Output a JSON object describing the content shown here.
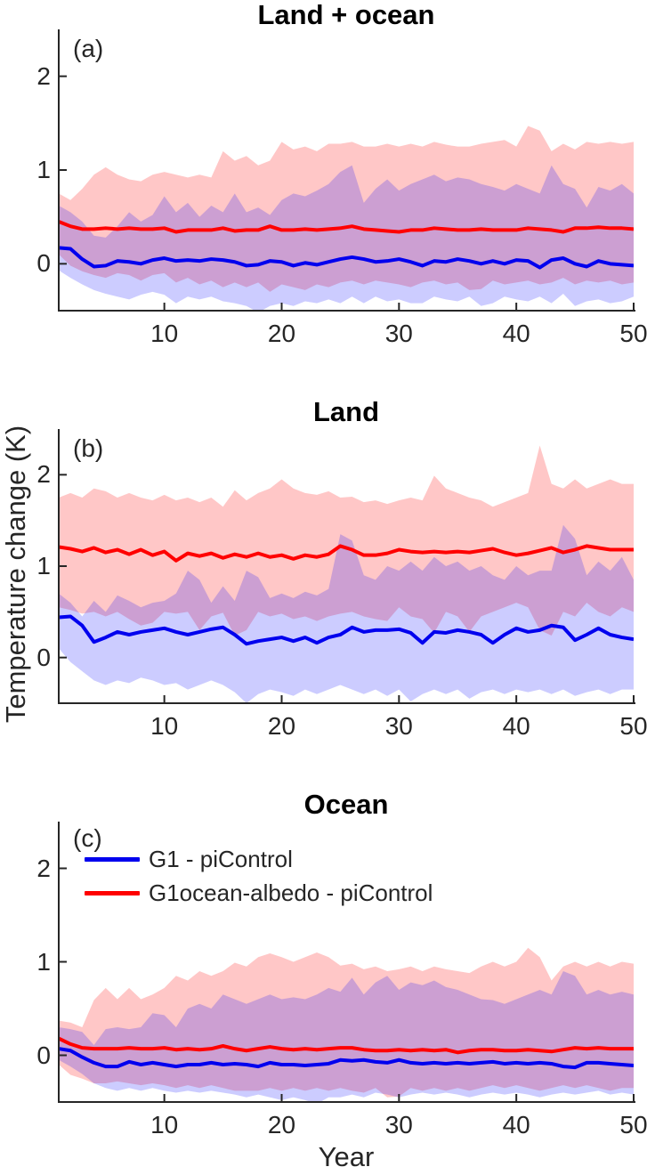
{
  "figure": {
    "ylabel": "Temperature change (K)",
    "xlabel": "Year",
    "axis_color": "#262626",
    "background": "#FFFFFF"
  },
  "legend": {
    "entries": [
      {
        "label": "G1 - piControl",
        "color": "#0000EE"
      },
      {
        "label": "G1ocean-albedo - piControl",
        "color": "#FF0000"
      }
    ]
  },
  "chart_data": [
    {
      "panel_label": "(a)",
      "title": "Land + ocean",
      "type": "line",
      "xlim": [
        1,
        50
      ],
      "ylim": [
        -0.5,
        2.5
      ],
      "xticks": [
        10,
        20,
        30,
        40,
        50
      ],
      "yticks": [
        0,
        1,
        2
      ],
      "x_start": 1,
      "x_step": 1,
      "n_points": 50,
      "series": [
        {
          "name": "G1 - piControl",
          "line_color": "#0000EE",
          "band_color": "#0000FF",
          "band_opacity": 0.2,
          "mean": [
            0.17,
            0.16,
            0.05,
            -0.03,
            -0.02,
            0.03,
            0.02,
            0.0,
            0.04,
            0.06,
            0.03,
            0.04,
            0.03,
            0.05,
            0.04,
            0.02,
            -0.02,
            -0.01,
            0.03,
            0.02,
            -0.02,
            0.01,
            -0.01,
            0.02,
            0.05,
            0.07,
            0.05,
            0.02,
            0.03,
            0.05,
            0.02,
            -0.02,
            0.03,
            0.02,
            0.05,
            0.03,
            0.0,
            0.03,
            0.0,
            0.04,
            0.03,
            -0.04,
            0.04,
            0.06,
            0.0,
            -0.03,
            0.03,
            0.0,
            -0.01,
            -0.02
          ],
          "band_high": [
            0.62,
            0.55,
            0.45,
            0.3,
            0.28,
            0.4,
            0.55,
            0.45,
            0.52,
            0.72,
            0.55,
            0.65,
            0.5,
            0.62,
            0.55,
            0.75,
            0.55,
            0.6,
            0.52,
            0.68,
            0.75,
            0.72,
            0.78,
            0.85,
            0.98,
            1.05,
            0.65,
            0.8,
            0.9,
            0.78,
            0.85,
            0.9,
            0.95,
            0.88,
            0.92,
            0.9,
            0.85,
            0.82,
            0.78,
            0.85,
            0.8,
            0.75,
            1.05,
            0.85,
            0.8,
            0.6,
            0.82,
            0.78,
            0.85,
            0.75
          ],
          "band_low": [
            -0.07,
            -0.15,
            -0.22,
            -0.28,
            -0.32,
            -0.35,
            -0.38,
            -0.33,
            -0.3,
            -0.33,
            -0.42,
            -0.35,
            -0.38,
            -0.35,
            -0.4,
            -0.42,
            -0.45,
            -0.52,
            -0.45,
            -0.42,
            -0.45,
            -0.4,
            -0.42,
            -0.38,
            -0.42,
            -0.35,
            -0.42,
            -0.35,
            -0.4,
            -0.38,
            -0.42,
            -0.42,
            -0.35,
            -0.38,
            -0.4,
            -0.35,
            -0.45,
            -0.42,
            -0.35,
            -0.38,
            -0.4,
            -0.35,
            -0.42,
            -0.32,
            -0.45,
            -0.4,
            -0.38,
            -0.42,
            -0.4,
            -0.35
          ]
        },
        {
          "name": "G1ocean-albedo - piControl",
          "line_color": "#FF0000",
          "band_color": "#FF0000",
          "band_opacity": 0.22,
          "mean": [
            0.45,
            0.4,
            0.37,
            0.37,
            0.38,
            0.37,
            0.38,
            0.37,
            0.37,
            0.38,
            0.34,
            0.36,
            0.36,
            0.36,
            0.38,
            0.35,
            0.36,
            0.36,
            0.4,
            0.36,
            0.36,
            0.37,
            0.36,
            0.37,
            0.38,
            0.4,
            0.37,
            0.36,
            0.35,
            0.34,
            0.36,
            0.36,
            0.38,
            0.37,
            0.36,
            0.36,
            0.37,
            0.36,
            0.36,
            0.36,
            0.38,
            0.37,
            0.36,
            0.34,
            0.38,
            0.38,
            0.39,
            0.38,
            0.38,
            0.37
          ],
          "band_high": [
            0.75,
            0.68,
            0.8,
            0.95,
            1.03,
            0.95,
            0.9,
            0.88,
            0.95,
            0.98,
            0.95,
            0.92,
            0.95,
            0.92,
            1.2,
            1.1,
            1.15,
            1.05,
            1.1,
            1.3,
            1.22,
            1.25,
            1.2,
            1.28,
            1.28,
            1.3,
            1.25,
            1.25,
            1.28,
            1.25,
            1.28,
            1.25,
            1.3,
            1.27,
            1.25,
            1.25,
            1.28,
            1.3,
            1.32,
            1.25,
            1.47,
            1.42,
            1.2,
            1.28,
            1.22,
            1.3,
            1.28,
            1.3,
            1.28,
            1.3
          ],
          "band_low": [
            0.1,
            -0.02,
            -0.08,
            -0.12,
            -0.15,
            -0.1,
            -0.12,
            -0.18,
            -0.12,
            -0.1,
            -0.2,
            -0.15,
            -0.22,
            -0.18,
            -0.25,
            -0.2,
            -0.25,
            -0.2,
            -0.3,
            -0.22,
            -0.25,
            -0.28,
            -0.22,
            -0.25,
            -0.2,
            -0.18,
            -0.22,
            -0.18,
            -0.2,
            -0.22,
            -0.25,
            -0.2,
            -0.18,
            -0.22,
            -0.2,
            -0.28,
            -0.27,
            -0.18,
            -0.22,
            -0.2,
            -0.18,
            -0.22,
            -0.2,
            -0.15,
            -0.22,
            -0.18,
            -0.2,
            -0.18,
            -0.22,
            -0.2
          ]
        }
      ]
    },
    {
      "panel_label": "(b)",
      "title": "Land",
      "type": "line",
      "xlim": [
        1,
        50
      ],
      "ylim": [
        -0.5,
        2.5
      ],
      "xticks": [
        10,
        20,
        30,
        40,
        50
      ],
      "yticks": [
        0,
        1,
        2
      ],
      "x_start": 1,
      "x_step": 1,
      "n_points": 50,
      "series": [
        {
          "name": "G1 - piControl",
          "line_color": "#0000EE",
          "band_color": "#0000FF",
          "band_opacity": 0.2,
          "mean": [
            0.44,
            0.45,
            0.35,
            0.17,
            0.22,
            0.28,
            0.25,
            0.28,
            0.3,
            0.32,
            0.28,
            0.25,
            0.28,
            0.31,
            0.33,
            0.25,
            0.15,
            0.18,
            0.2,
            0.22,
            0.18,
            0.22,
            0.16,
            0.22,
            0.25,
            0.33,
            0.28,
            0.3,
            0.3,
            0.31,
            0.27,
            0.16,
            0.28,
            0.27,
            0.3,
            0.28,
            0.25,
            0.16,
            0.25,
            0.32,
            0.28,
            0.3,
            0.35,
            0.33,
            0.19,
            0.25,
            0.32,
            0.25,
            0.22,
            0.2
          ],
          "band_high": [
            0.7,
            0.6,
            0.45,
            0.62,
            0.5,
            0.68,
            0.62,
            0.55,
            0.6,
            0.62,
            0.7,
            0.95,
            0.85,
            0.6,
            0.78,
            0.62,
            0.95,
            0.88,
            0.65,
            0.7,
            0.65,
            0.72,
            0.68,
            0.75,
            1.35,
            1.28,
            0.9,
            0.85,
            1.0,
            0.95,
            1.05,
            0.95,
            1.1,
            1.0,
            1.05,
            0.95,
            1.0,
            0.9,
            0.85,
            1.0,
            0.9,
            0.95,
            0.95,
            1.45,
            1.3,
            0.9,
            1.05,
            0.95,
            1.1,
            0.85
          ],
          "band_low": [
            0.1,
            -0.05,
            -0.15,
            -0.25,
            -0.3,
            -0.25,
            -0.28,
            -0.22,
            -0.25,
            -0.3,
            -0.28,
            -0.35,
            -0.3,
            -0.25,
            -0.3,
            -0.38,
            -0.5,
            -0.4,
            -0.35,
            -0.38,
            -0.42,
            -0.35,
            -0.4,
            -0.35,
            -0.3,
            -0.35,
            -0.4,
            -0.35,
            -0.42,
            -0.35,
            -0.48,
            -0.4,
            -0.35,
            -0.4,
            -0.35,
            -0.45,
            -0.38,
            -0.35,
            -0.4,
            -0.35,
            -0.38,
            -0.35,
            -0.4,
            -0.35,
            -0.42,
            -0.38,
            -0.35,
            -0.4,
            -0.35,
            -0.35
          ]
        },
        {
          "name": "G1ocean-albedo - piControl",
          "line_color": "#FF0000",
          "band_color": "#FF0000",
          "band_opacity": 0.22,
          "mean": [
            1.21,
            1.19,
            1.16,
            1.2,
            1.15,
            1.18,
            1.13,
            1.18,
            1.12,
            1.16,
            1.06,
            1.14,
            1.11,
            1.14,
            1.09,
            1.13,
            1.1,
            1.14,
            1.1,
            1.12,
            1.08,
            1.12,
            1.1,
            1.13,
            1.22,
            1.18,
            1.12,
            1.12,
            1.14,
            1.18,
            1.16,
            1.15,
            1.16,
            1.15,
            1.16,
            1.15,
            1.17,
            1.19,
            1.15,
            1.12,
            1.14,
            1.17,
            1.2,
            1.15,
            1.18,
            1.22,
            1.2,
            1.18,
            1.18,
            1.18
          ],
          "band_high": [
            1.75,
            1.8,
            1.75,
            1.85,
            1.82,
            1.75,
            1.8,
            1.75,
            1.72,
            1.78,
            1.72,
            1.75,
            1.7,
            1.75,
            1.65,
            1.83,
            1.72,
            1.8,
            1.85,
            1.95,
            1.85,
            1.8,
            1.78,
            1.82,
            1.75,
            1.76,
            1.7,
            1.72,
            1.68,
            1.72,
            1.75,
            1.72,
            1.99,
            1.85,
            1.8,
            1.75,
            1.72,
            1.65,
            1.7,
            1.75,
            1.8,
            2.32,
            1.9,
            1.85,
            1.95,
            1.85,
            1.9,
            1.95,
            1.9,
            1.9
          ],
          "band_low": [
            0.55,
            0.52,
            0.48,
            0.5,
            0.45,
            0.5,
            0.42,
            0.35,
            0.38,
            0.5,
            0.48,
            0.5,
            0.3,
            0.45,
            0.49,
            0.24,
            0.3,
            0.5,
            0.45,
            0.48,
            0.42,
            0.45,
            0.4,
            0.45,
            0.48,
            0.5,
            0.45,
            0.42,
            0.4,
            0.55,
            0.45,
            0.42,
            0.27,
            0.5,
            0.45,
            0.28,
            0.45,
            0.5,
            0.55,
            0.6,
            0.55,
            0.3,
            0.24,
            0.5,
            0.45,
            0.6,
            0.5,
            0.45,
            0.55,
            0.5
          ]
        }
      ]
    },
    {
      "panel_label": "(c)",
      "title": "Ocean",
      "type": "line",
      "xlim": [
        1,
        50
      ],
      "ylim": [
        -0.5,
        2.5
      ],
      "xticks": [
        10,
        20,
        30,
        40,
        50
      ],
      "yticks": [
        0,
        1,
        2
      ],
      "x_start": 1,
      "x_step": 1,
      "n_points": 50,
      "series": [
        {
          "name": "G1 - piControl",
          "line_color": "#0000EE",
          "band_color": "#0000FF",
          "band_opacity": 0.2,
          "mean": [
            0.07,
            0.05,
            -0.02,
            -0.08,
            -0.12,
            -0.12,
            -0.07,
            -0.1,
            -0.08,
            -0.1,
            -0.12,
            -0.1,
            -0.1,
            -0.08,
            -0.1,
            -0.09,
            -0.1,
            -0.12,
            -0.08,
            -0.1,
            -0.1,
            -0.11,
            -0.1,
            -0.09,
            -0.05,
            -0.06,
            -0.05,
            -0.07,
            -0.08,
            -0.05,
            -0.08,
            -0.09,
            -0.08,
            -0.09,
            -0.08,
            -0.09,
            -0.08,
            -0.07,
            -0.09,
            -0.08,
            -0.09,
            -0.08,
            -0.09,
            -0.12,
            -0.13,
            -0.08,
            -0.08,
            -0.09,
            -0.1,
            -0.11
          ],
          "band_high": [
            0.3,
            0.28,
            0.25,
            0.11,
            0.28,
            0.3,
            0.28,
            0.3,
            0.45,
            0.43,
            0.3,
            0.5,
            0.55,
            0.5,
            0.65,
            0.6,
            0.55,
            0.6,
            0.65,
            0.6,
            0.62,
            0.6,
            0.65,
            0.72,
            0.68,
            0.83,
            0.65,
            0.78,
            0.85,
            0.7,
            0.78,
            0.75,
            0.8,
            0.73,
            0.7,
            0.65,
            0.6,
            0.59,
            0.55,
            0.6,
            0.65,
            0.7,
            0.65,
            0.9,
            0.85,
            0.65,
            0.7,
            0.65,
            0.68,
            0.65
          ],
          "band_low": [
            -0.05,
            -0.12,
            -0.2,
            -0.3,
            -0.35,
            -0.38,
            -0.35,
            -0.38,
            -0.35,
            -0.38,
            -0.4,
            -0.38,
            -0.4,
            -0.38,
            -0.4,
            -0.42,
            -0.45,
            -0.42,
            -0.45,
            -0.48,
            -0.45,
            -0.48,
            -0.52,
            -0.45,
            -0.45,
            -0.42,
            -0.45,
            -0.4,
            -0.42,
            -0.45,
            -0.42,
            -0.4,
            -0.42,
            -0.4,
            -0.42,
            -0.45,
            -0.42,
            -0.4,
            -0.42,
            -0.4,
            -0.42,
            -0.45,
            -0.42,
            -0.4,
            -0.42,
            -0.4,
            -0.38,
            -0.42,
            -0.4,
            -0.42
          ]
        },
        {
          "name": "G1ocean-albedo - piControl",
          "line_color": "#FF0000",
          "band_color": "#FF0000",
          "band_opacity": 0.22,
          "mean": [
            0.18,
            0.12,
            0.08,
            0.07,
            0.07,
            0.07,
            0.08,
            0.07,
            0.07,
            0.08,
            0.06,
            0.07,
            0.06,
            0.07,
            0.1,
            0.07,
            0.05,
            0.07,
            0.09,
            0.07,
            0.06,
            0.07,
            0.06,
            0.07,
            0.08,
            0.08,
            0.06,
            0.05,
            0.05,
            0.06,
            0.05,
            0.06,
            0.05,
            0.06,
            0.03,
            0.05,
            0.06,
            0.06,
            0.05,
            0.05,
            0.06,
            0.05,
            0.04,
            0.06,
            0.08,
            0.07,
            0.08,
            0.07,
            0.07,
            0.07
          ],
          "band_high": [
            0.37,
            0.35,
            0.3,
            0.59,
            0.72,
            0.6,
            0.72,
            0.6,
            0.65,
            0.72,
            0.85,
            0.8,
            0.9,
            0.85,
            0.9,
            0.99,
            0.95,
            1.05,
            1.09,
            1.05,
            1.0,
            1.05,
            1.1,
            1.05,
            0.96,
            0.98,
            0.92,
            0.95,
            0.9,
            0.92,
            0.95,
            0.9,
            0.95,
            0.92,
            0.9,
            0.88,
            0.95,
            1.0,
            0.95,
            1.0,
            1.15,
            1.05,
            0.8,
            0.95,
            1.0,
            0.95,
            1.0,
            0.95,
            1.0,
            0.98
          ],
          "band_low": [
            -0.1,
            -0.21,
            -0.25,
            -0.3,
            -0.3,
            -0.28,
            -0.3,
            -0.32,
            -0.3,
            -0.32,
            -0.35,
            -0.32,
            -0.35,
            -0.32,
            -0.35,
            -0.38,
            -0.38,
            -0.38,
            -0.35,
            -0.38,
            -0.35,
            -0.38,
            -0.35,
            -0.38,
            -0.35,
            -0.38,
            -0.4,
            -0.35,
            -0.45,
            -0.44,
            -0.35,
            -0.38,
            -0.35,
            -0.38,
            -0.35,
            -0.38,
            -0.35,
            -0.32,
            -0.35,
            -0.32,
            -0.35,
            -0.38,
            -0.35,
            -0.32,
            -0.35,
            -0.32,
            -0.35,
            -0.38,
            -0.35,
            -0.35
          ]
        }
      ]
    }
  ]
}
